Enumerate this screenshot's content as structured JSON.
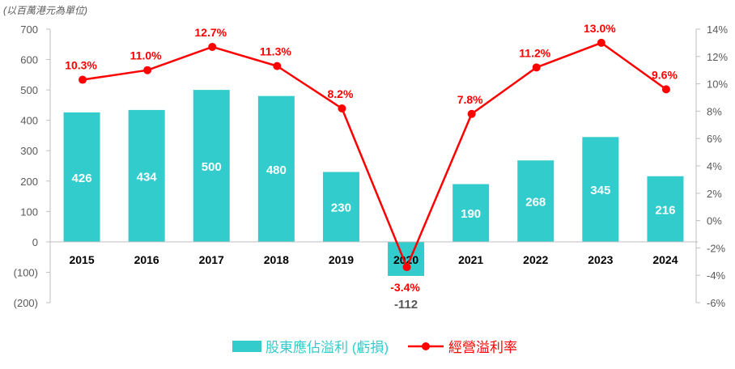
{
  "chart_data": {
    "type": "bar+line",
    "unit_label": "(以百萬港元為單位)",
    "categories": [
      "2015",
      "2016",
      "2017",
      "2018",
      "2019",
      "2020",
      "2021",
      "2022",
      "2023",
      "2024"
    ],
    "series": [
      {
        "name": "股東應佔溢利 (虧損)",
        "type": "bar",
        "axis": "left",
        "values": [
          426,
          434,
          500,
          480,
          230,
          -112,
          190,
          268,
          345,
          216
        ],
        "labels": [
          "426",
          "434",
          "500",
          "480",
          "230",
          "-112",
          "190",
          "268",
          "345",
          "216"
        ]
      },
      {
        "name": "經營溢利率",
        "type": "line",
        "axis": "right",
        "values": [
          10.3,
          11.0,
          12.7,
          11.3,
          8.2,
          -3.4,
          7.8,
          11.2,
          13.0,
          9.6
        ],
        "labels": [
          "10.3%",
          "11.0%",
          "12.7%",
          "11.3%",
          "8.2%",
          "-3.4%",
          "7.8%",
          "11.2%",
          "13.0%",
          "9.6%"
        ]
      }
    ],
    "y_left": {
      "range": [
        -200,
        700
      ],
      "ticks": [
        700,
        600,
        500,
        400,
        300,
        200,
        100,
        0,
        -100,
        -200
      ],
      "tick_labels": [
        "700",
        "600",
        "500",
        "400",
        "300",
        "200",
        "100",
        "0",
        "(100)",
        "(200)"
      ]
    },
    "y_right": {
      "range": [
        -6,
        14
      ],
      "ticks": [
        14,
        12,
        10,
        8,
        6,
        4,
        2,
        0,
        -2,
        -4,
        -6
      ],
      "tick_labels": [
        "14%",
        "12%",
        "10%",
        "8%",
        "6%",
        "4%",
        "2%",
        "0%",
        "-2%",
        "-4%",
        "-6%"
      ]
    },
    "grid": false,
    "legend_position": "bottom-center",
    "colors": {
      "bar": "#33CCCC",
      "line": "#FF0000",
      "line_label": "#FF0000",
      "negative_bar_label": "#595959"
    }
  }
}
